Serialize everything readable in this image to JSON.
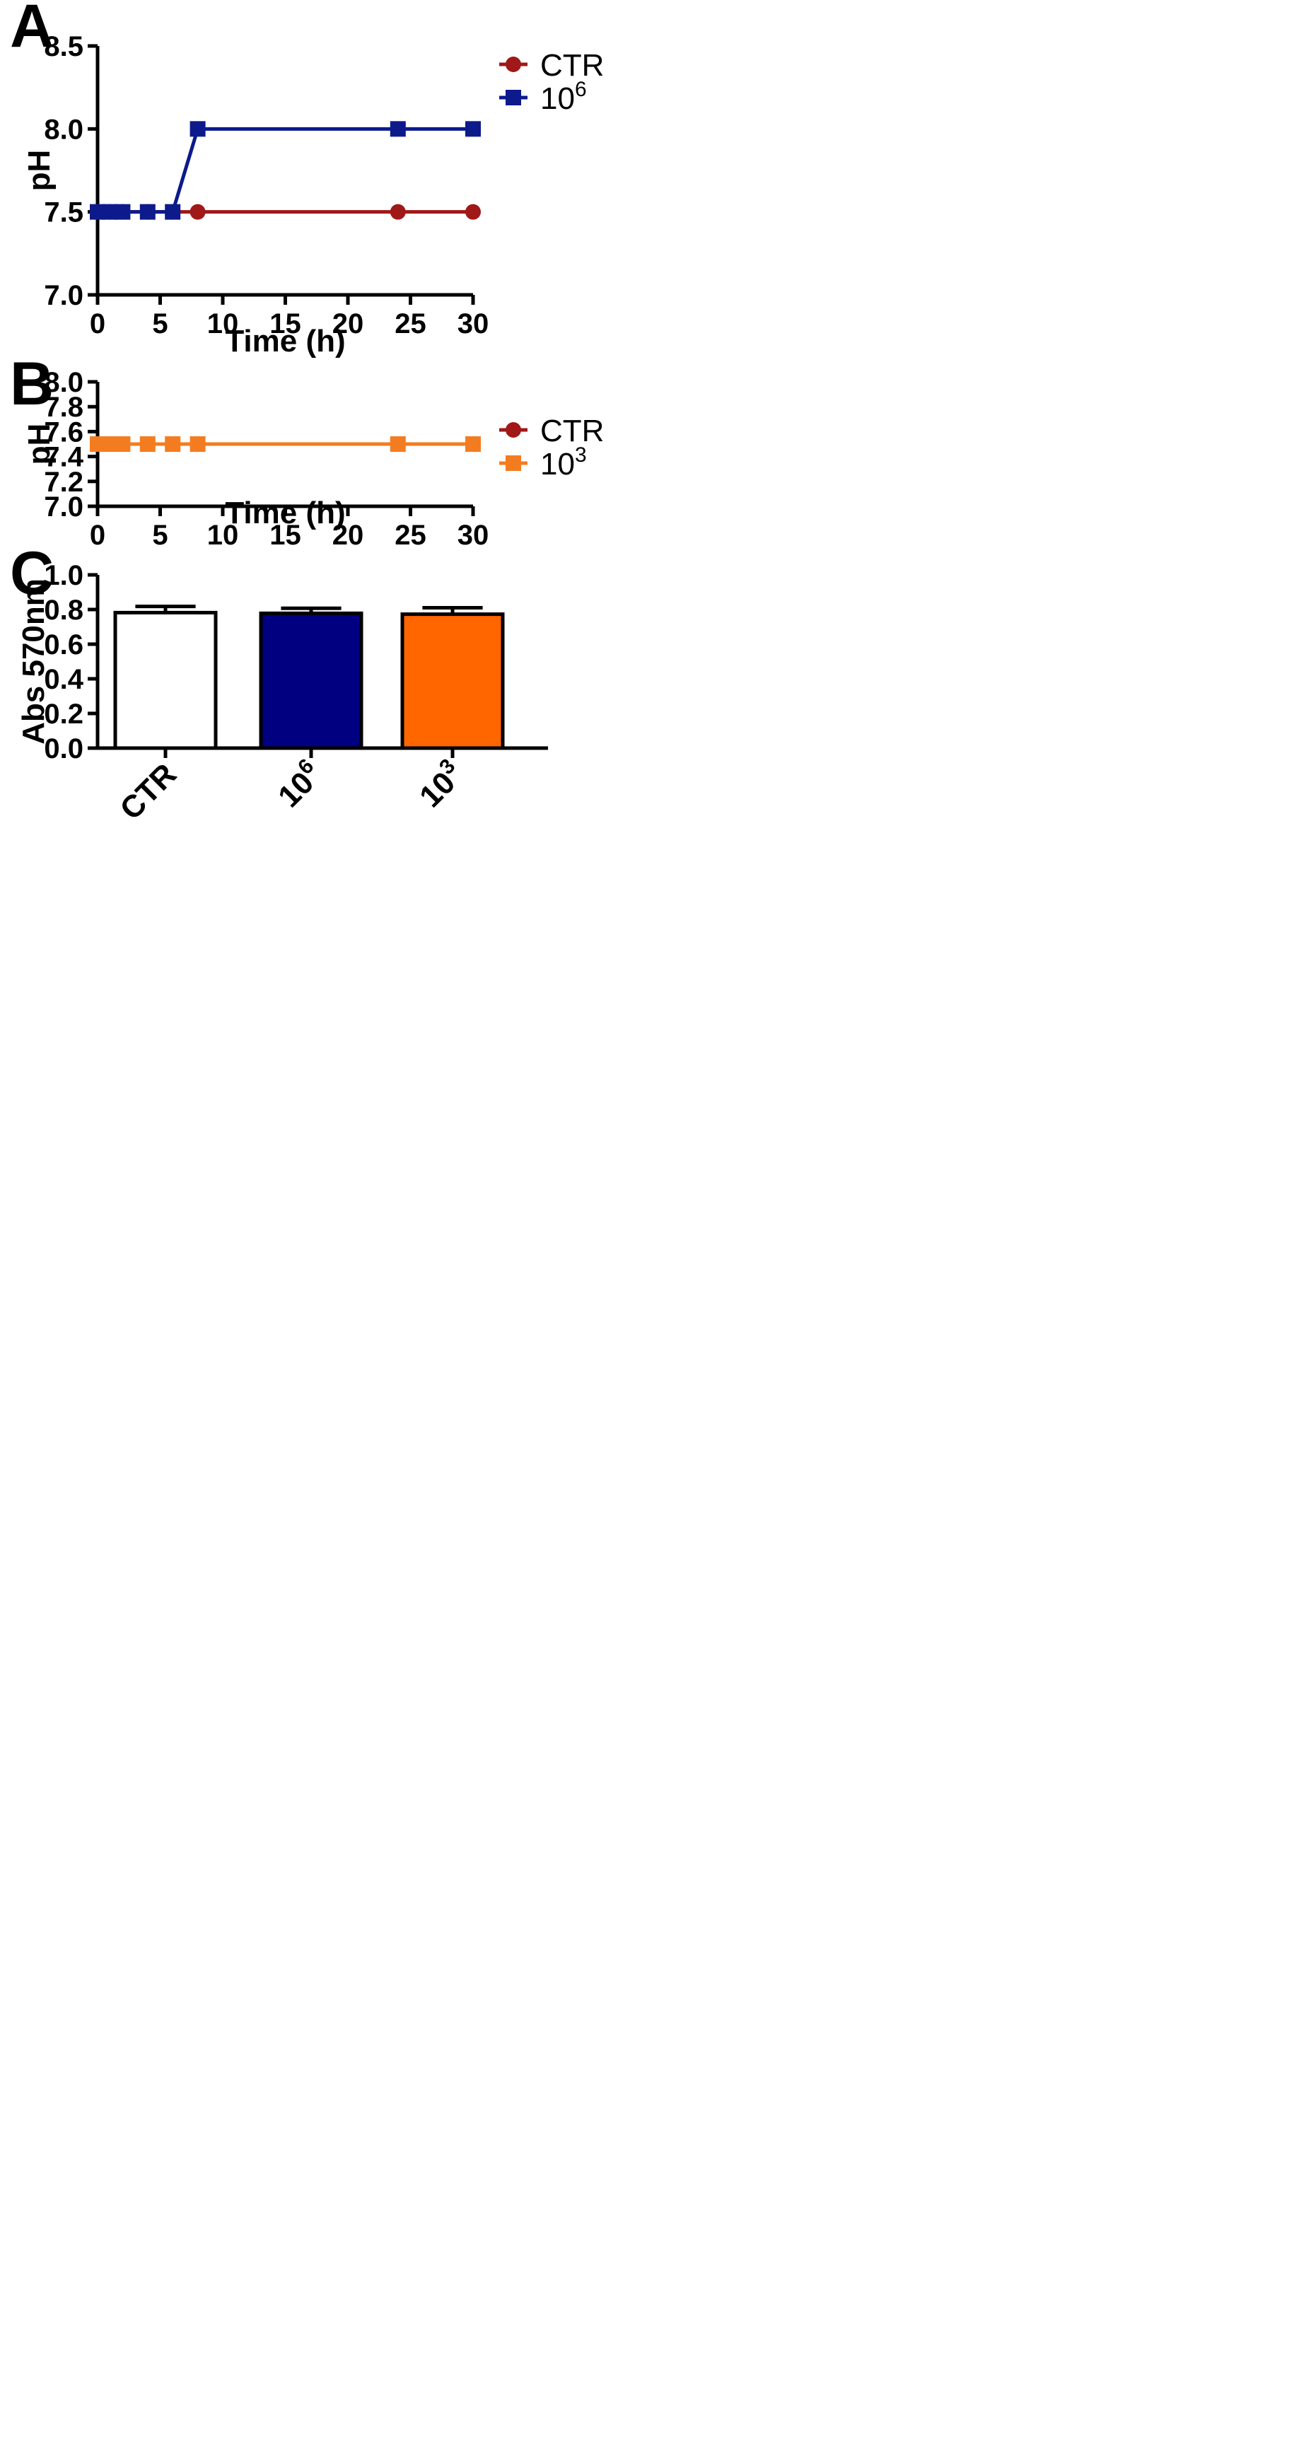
{
  "chart_data": [
    {
      "type": "line",
      "panel_label": "A",
      "xlabel": "Time (h)",
      "ylabel": "pH",
      "xlim": [
        0,
        30
      ],
      "ylim": [
        7.0,
        8.5
      ],
      "x_ticks": [
        "0",
        "5",
        "10",
        "15",
        "20",
        "25",
        "30"
      ],
      "y_ticks": [
        "7.0",
        "7.5",
        "8.0",
        "8.5"
      ],
      "legend_position": "top-right",
      "series": [
        {
          "name": "CTR",
          "marker": "circle",
          "color": "#a01818",
          "x": [
            0,
            1,
            2,
            4,
            6,
            8,
            24,
            30
          ],
          "y": [
            7.5,
            7.5,
            7.5,
            7.5,
            7.5,
            7.5,
            7.5,
            7.5
          ]
        },
        {
          "name": "10",
          "name_sup": "6",
          "marker": "square",
          "color": "#0d1a8c",
          "x": [
            0,
            1,
            2,
            4,
            6,
            8,
            24,
            30
          ],
          "y": [
            7.5,
            7.5,
            7.5,
            7.5,
            7.5,
            8.0,
            8.0,
            8.0
          ]
        }
      ]
    },
    {
      "type": "line",
      "panel_label": "B",
      "xlabel": "Time (h)",
      "ylabel": "pH",
      "xlim": [
        0,
        30
      ],
      "ylim": [
        7.0,
        8.0
      ],
      "x_ticks": [
        "0",
        "5",
        "10",
        "15",
        "20",
        "25",
        "30"
      ],
      "y_ticks": [
        "7.0",
        "7.2",
        "7.4",
        "7.6",
        "7.8",
        "8.0"
      ],
      "legend_position": "top-right",
      "series": [
        {
          "name": "CTR",
          "marker": "circle",
          "color": "#a01818",
          "x": [
            0,
            1,
            2,
            4,
            6,
            8,
            24,
            30
          ],
          "y": [
            7.5,
            7.5,
            7.5,
            7.5,
            7.5,
            7.5,
            7.5,
            7.5
          ]
        },
        {
          "name": "10",
          "name_sup": "3",
          "marker": "square",
          "color": "#f47c20",
          "x": [
            0,
            1,
            2,
            4,
            6,
            8,
            24,
            30
          ],
          "y": [
            7.5,
            7.5,
            7.5,
            7.5,
            7.5,
            7.5,
            7.5,
            7.5
          ]
        }
      ]
    },
    {
      "type": "bar",
      "panel_label": "C",
      "ylabel": "Abs 570nm",
      "ylim": [
        0,
        1.0
      ],
      "y_ticks": [
        "0.0",
        "0.2",
        "0.4",
        "0.6",
        "0.8",
        "1.0"
      ],
      "categories": [
        {
          "base": "CTR",
          "sup": ""
        },
        {
          "base": "10",
          "sup": "6"
        },
        {
          "base": "10",
          "sup": "3"
        }
      ],
      "values": [
        0.782,
        0.778,
        0.773
      ],
      "errors": [
        0.036,
        0.029,
        0.037
      ],
      "colors": [
        "#ffffff",
        "#000080",
        "#ff6600"
      ]
    }
  ]
}
